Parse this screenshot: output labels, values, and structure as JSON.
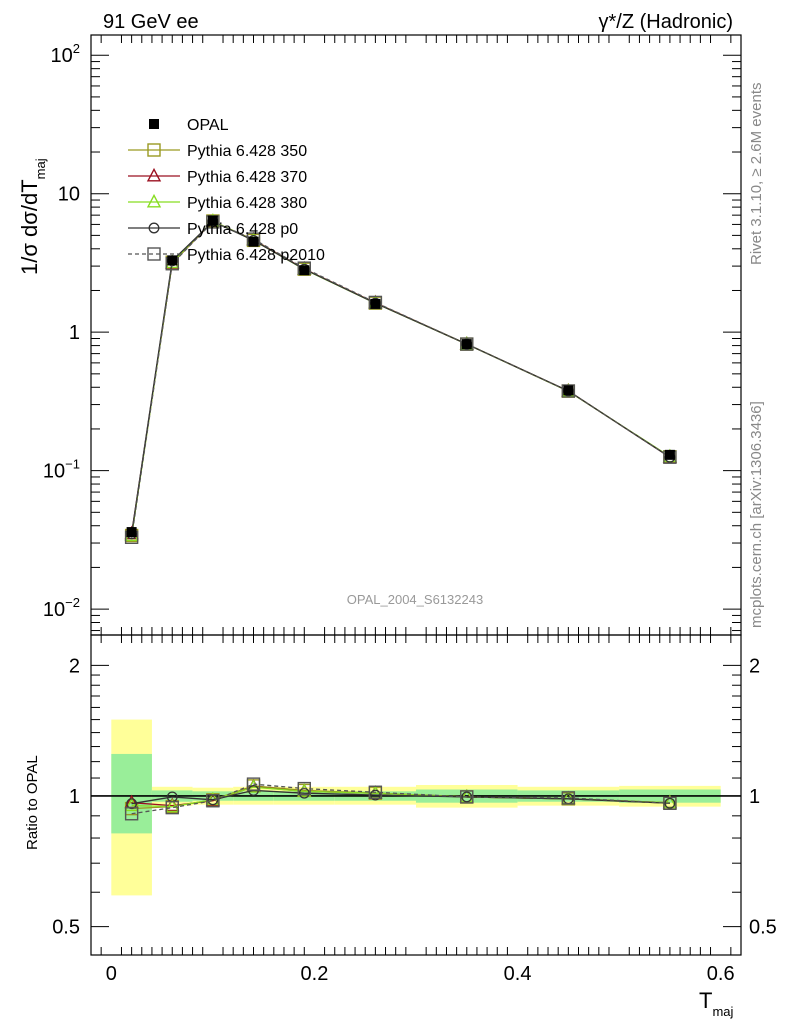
{
  "header": {
    "left": "91 GeV ee",
    "right": "γ*/Z (Hadronic)"
  },
  "side_text": {
    "rivet": "Rivet 3.1.10, ≥ 2.6M events",
    "mcplots": "mcplots.cern.ch [arXiv:1306.3436]"
  },
  "watermark": "OPAL_2004_S6132243",
  "colors": {
    "opal": "#000000",
    "p350": "#9a9a22",
    "p370": "#9b1020",
    "p380": "#88dd22",
    "p0": "#333333",
    "p2010": "#555555",
    "band_inner": "#99ee99",
    "band_outer": "#ffff99"
  },
  "chart_data": [
    {
      "type": "line",
      "panel": "main",
      "ylabel_main": "1/σ dσ/dT",
      "ylabel_sub": "maj",
      "yscale": "log",
      "ylim": [
        0.0065,
        140
      ],
      "xlim": [
        -0.02,
        0.62
      ],
      "ytick_labels": [
        {
          "value": 100,
          "base": "10",
          "exp": "2"
        },
        {
          "value": 10,
          "base": "10",
          "exp": ""
        },
        {
          "value": 1,
          "base": "1",
          "exp": ""
        },
        {
          "value": 0.1,
          "base": "10",
          "exp": "−1"
        },
        {
          "value": 0.01,
          "base": "10",
          "exp": "−2"
        }
      ],
      "x": [
        0.02,
        0.06,
        0.1,
        0.14,
        0.19,
        0.26,
        0.35,
        0.45,
        0.55
      ],
      "data": {
        "name": "OPAL",
        "values": [
          0.036,
          3.3,
          6.4,
          4.5,
          2.8,
          1.6,
          0.82,
          0.38,
          0.13
        ],
        "errors": [
          0.003,
          0.06,
          0.1,
          0.08,
          0.05,
          0.03,
          0.015,
          0.008,
          0.006
        ]
      },
      "series": [
        {
          "name": "Pythia 6.428 350",
          "key": "p350",
          "marker": "open-square",
          "dash": "",
          "values": [
            0.034,
            3.2,
            6.35,
            4.6,
            2.85,
            1.62,
            0.82,
            0.375,
            0.126
          ]
        },
        {
          "name": "Pythia 6.428 370",
          "key": "p370",
          "marker": "open-triangle",
          "dash": "",
          "values": [
            0.035,
            3.15,
            6.3,
            4.65,
            2.86,
            1.63,
            0.82,
            0.376,
            0.125
          ]
        },
        {
          "name": "Pythia 6.428 380",
          "key": "p380",
          "marker": "open-triangle",
          "dash": "",
          "values": [
            0.034,
            3.18,
            6.33,
            4.62,
            2.84,
            1.62,
            0.82,
            0.375,
            0.126
          ]
        },
        {
          "name": "Pythia 6.428 p0",
          "key": "p0",
          "marker": "open-circle",
          "dash": "",
          "values": [
            0.035,
            3.28,
            6.3,
            4.6,
            2.85,
            1.62,
            0.82,
            0.376,
            0.125
          ]
        },
        {
          "name": "Pythia 6.428 p2010",
          "key": "p2010",
          "marker": "open-square",
          "dash": "4,3",
          "values": [
            0.033,
            3.12,
            6.25,
            4.7,
            2.9,
            1.64,
            0.82,
            0.376,
            0.125
          ]
        }
      ],
      "legend": [
        {
          "label": "OPAL",
          "key": "opal",
          "marker": "filled-square"
        },
        {
          "label": "Pythia 6.428 350",
          "key": "p350",
          "marker": "open-square"
        },
        {
          "label": "Pythia 6.428 370",
          "key": "p370",
          "marker": "open-triangle"
        },
        {
          "label": "Pythia 6.428 380",
          "key": "p380",
          "marker": "open-triangle"
        },
        {
          "label": "Pythia 6.428 p0",
          "key": "p0",
          "marker": "open-circle"
        },
        {
          "label": "Pythia 6.428 p2010",
          "key": "p2010",
          "marker": "open-square"
        }
      ],
      "legend_position": "upper-left"
    },
    {
      "type": "line",
      "panel": "ratio",
      "ylabel": "Ratio to OPAL",
      "xlabel_main": "T",
      "xlabel_sub": "maj",
      "yscale": "log",
      "ylim": [
        0.43,
        2.35
      ],
      "xlim": [
        -0.02,
        0.62
      ],
      "xticks": [
        0,
        0.2,
        0.4,
        0.6
      ],
      "xtick_labels": [
        "0",
        "0.2",
        "0.4",
        "0.6"
      ],
      "ytick_labels": [
        {
          "value": 2,
          "label": "2"
        },
        {
          "value": 1,
          "label": "1"
        },
        {
          "value": 0.5,
          "label": "0.5"
        }
      ],
      "bands": [
        {
          "x0": 0.0,
          "x1": 0.04,
          "inner": [
            0.82,
            1.25
          ],
          "outer": [
            0.59,
            1.5
          ]
        },
        {
          "x0": 0.04,
          "x1": 0.08,
          "inner": [
            0.97,
            1.03
          ],
          "outer": [
            0.95,
            1.05
          ]
        },
        {
          "x0": 0.08,
          "x1": 0.12,
          "inner": [
            0.975,
            1.025
          ],
          "outer": [
            0.955,
            1.045
          ]
        },
        {
          "x0": 0.12,
          "x1": 0.16,
          "inner": [
            0.975,
            1.025
          ],
          "outer": [
            0.955,
            1.05
          ]
        },
        {
          "x0": 0.16,
          "x1": 0.22,
          "inner": [
            0.975,
            1.025
          ],
          "outer": [
            0.955,
            1.05
          ]
        },
        {
          "x0": 0.22,
          "x1": 0.3,
          "inner": [
            0.975,
            1.025
          ],
          "outer": [
            0.955,
            1.05
          ]
        },
        {
          "x0": 0.3,
          "x1": 0.4,
          "inner": [
            0.965,
            1.035
          ],
          "outer": [
            0.94,
            1.06
          ]
        },
        {
          "x0": 0.4,
          "x1": 0.5,
          "inner": [
            0.97,
            1.03
          ],
          "outer": [
            0.95,
            1.05
          ]
        },
        {
          "x0": 0.5,
          "x1": 0.6,
          "inner": [
            0.965,
            1.035
          ],
          "outer": [
            0.945,
            1.055
          ]
        }
      ],
      "x": [
        0.02,
        0.06,
        0.1,
        0.14,
        0.19,
        0.26,
        0.35,
        0.45,
        0.55
      ],
      "series": [
        {
          "name": "Pythia 6.428 350",
          "key": "p350",
          "marker": "open-square",
          "dash": "",
          "values": [
            0.935,
            0.945,
            0.98,
            1.055,
            1.03,
            1.015,
            0.995,
            0.985,
            0.962
          ]
        },
        {
          "name": "Pythia 6.428 370",
          "key": "p370",
          "marker": "open-triangle",
          "dash": "",
          "values": [
            0.965,
            0.95,
            0.975,
            1.05,
            1.025,
            1.015,
            0.995,
            0.985,
            0.965
          ]
        },
        {
          "name": "Pythia 6.428 380",
          "key": "p380",
          "marker": "open-triangle",
          "dash": "",
          "values": [
            0.95,
            0.945,
            0.98,
            1.048,
            1.025,
            1.015,
            0.995,
            0.985,
            0.965
          ]
        },
        {
          "name": "Pythia 6.428 p0",
          "key": "p0",
          "marker": "open-circle",
          "dash": "",
          "values": [
            0.96,
            0.995,
            0.98,
            1.03,
            1.015,
            1.005,
            0.995,
            0.985,
            0.962
          ]
        },
        {
          "name": "Pythia 6.428 p2010",
          "key": "p2010",
          "marker": "open-square",
          "dash": "4,3",
          "values": [
            0.91,
            0.94,
            0.975,
            1.065,
            1.04,
            1.02,
            0.995,
            0.99,
            0.962
          ]
        }
      ]
    }
  ]
}
